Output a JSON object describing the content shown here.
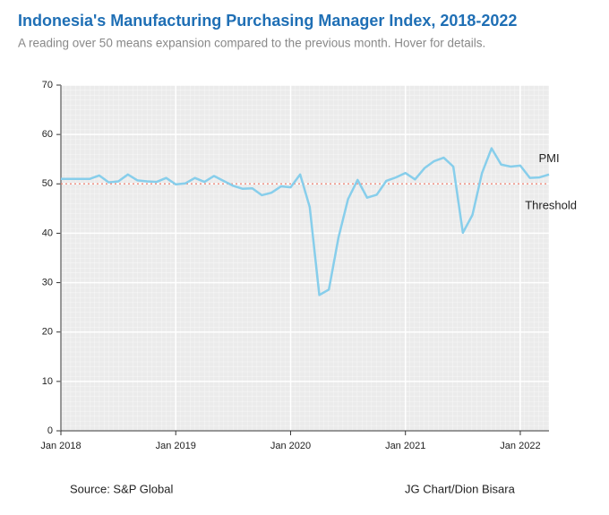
{
  "chart_data": {
    "type": "line",
    "title": "Indonesia's Manufacturing Purchasing Manager Index, 2018-2022",
    "subtitle": "A reading over 50 means expansion compared to the previous month. Hover for details.",
    "source": "Source: S&P Global",
    "credit": "JG Chart/Dion Bisara",
    "x": [
      "2018-01",
      "2018-02",
      "2018-03",
      "2018-04",
      "2018-05",
      "2018-06",
      "2018-07",
      "2018-08",
      "2018-09",
      "2018-10",
      "2018-11",
      "2018-12",
      "2019-01",
      "2019-02",
      "2019-03",
      "2019-04",
      "2019-05",
      "2019-06",
      "2019-07",
      "2019-08",
      "2019-09",
      "2019-10",
      "2019-11",
      "2019-12",
      "2020-01",
      "2020-02",
      "2020-03",
      "2020-04",
      "2020-05",
      "2020-06",
      "2020-07",
      "2020-08",
      "2020-09",
      "2020-10",
      "2020-11",
      "2020-12",
      "2021-01",
      "2021-02",
      "2021-03",
      "2021-04",
      "2021-05",
      "2021-06",
      "2021-07",
      "2021-08",
      "2021-09",
      "2021-10",
      "2021-11",
      "2021-12",
      "2022-01",
      "2022-02",
      "2022-03",
      "2022-04"
    ],
    "series": [
      {
        "name": "PMI",
        "color": "#87ceeb",
        "values": [
          51.0,
          51.0,
          51.0,
          51.0,
          51.7,
          50.3,
          50.5,
          51.9,
          50.7,
          50.5,
          50.4,
          51.2,
          49.9,
          50.1,
          51.2,
          50.4,
          51.6,
          50.6,
          49.6,
          49.0,
          49.1,
          47.7,
          48.2,
          49.5,
          49.3,
          51.9,
          45.3,
          27.5,
          28.6,
          39.1,
          46.9,
          50.8,
          47.2,
          47.8,
          50.6,
          51.3,
          52.2,
          50.9,
          53.2,
          54.6,
          55.3,
          53.5,
          40.1,
          43.7,
          52.2,
          57.2,
          53.9,
          53.5,
          53.7,
          51.2,
          51.3,
          51.9
        ]
      }
    ],
    "threshold": {
      "name": "Threshold",
      "value": 50,
      "color": "#f08070"
    },
    "xlim": [
      "2018-01",
      "2022-04"
    ],
    "xticks": [
      {
        "value": "2018-01",
        "label": "Jan 2018"
      },
      {
        "value": "2019-01",
        "label": "Jan 2019"
      },
      {
        "value": "2020-01",
        "label": "Jan 2020"
      },
      {
        "value": "2021-01",
        "label": "Jan 2021"
      },
      {
        "value": "2022-01",
        "label": "Jan 2022"
      }
    ],
    "ylim": [
      0,
      70
    ],
    "yticks": [
      0,
      10,
      20,
      30,
      40,
      50,
      60,
      70
    ],
    "grid": true
  }
}
